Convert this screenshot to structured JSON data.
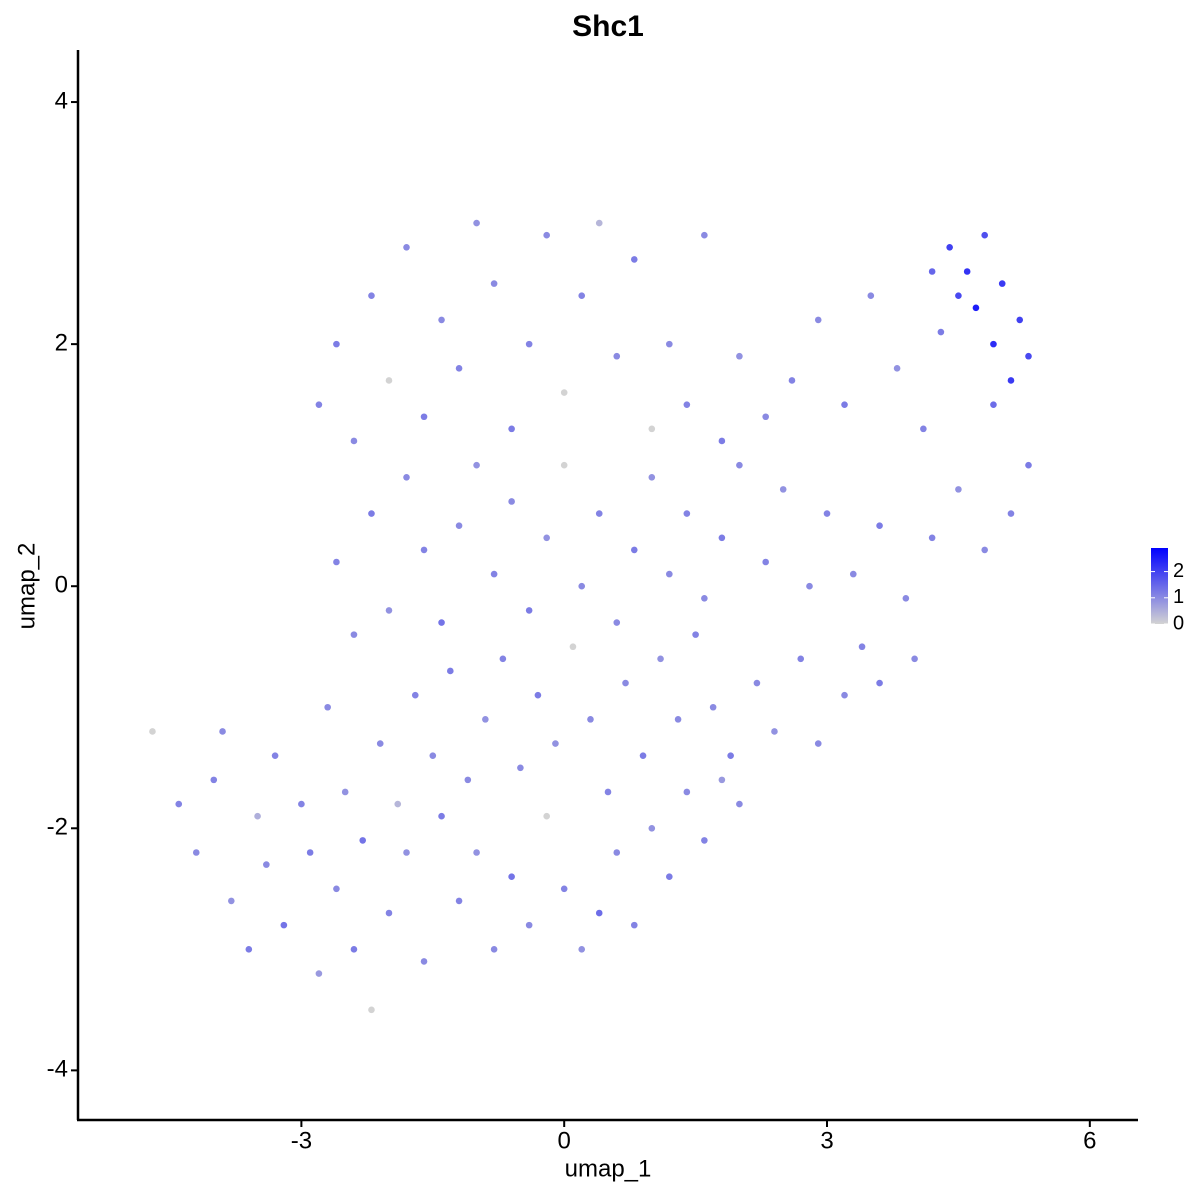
{
  "chart_data": {
    "type": "scatter",
    "title": "Shc1",
    "x_label": "umap_1",
    "y_label": "umap_2",
    "xlim": [
      -5.55,
      6.55
    ],
    "ylim": [
      -4.41,
      4.43
    ],
    "xticks": [
      -3,
      0,
      3,
      6
    ],
    "yticks": [
      -4,
      -2,
      0,
      2,
      4
    ],
    "color_low": "#d3d3d3",
    "color_high": "#0000ff",
    "color_lim": [
      0,
      2.9
    ],
    "color_ticks": [
      0,
      1,
      2
    ],
    "x": [
      -4.2,
      -4.0,
      -3.8,
      -3.6,
      -3.4,
      -3.2,
      -3.0,
      -2.8,
      -2.6,
      -2.4,
      -2.2,
      -2.0,
      -1.8,
      -1.6,
      -1.4,
      -1.2,
      -1.0,
      -0.8,
      -0.6,
      -0.4,
      -0.2,
      0.0,
      0.2,
      0.4,
      0.6,
      0.8,
      1.0,
      1.2,
      1.4,
      1.6,
      1.8,
      2.0,
      -3.9,
      -3.5,
      -3.3,
      -2.9,
      -2.7,
      -2.5,
      -2.3,
      -2.1,
      -1.9,
      -1.7,
      -1.5,
      -1.3,
      -1.1,
      -0.9,
      -0.7,
      -0.5,
      -0.3,
      -0.1,
      0.1,
      0.3,
      0.5,
      0.7,
      0.9,
      1.1,
      1.3,
      1.5,
      1.7,
      1.9,
      2.2,
      2.4,
      2.7,
      2.9,
      3.2,
      3.4,
      3.6,
      -4.7,
      -4.4,
      -2.6,
      -2.4,
      -2.2,
      -2.0,
      -1.8,
      -1.6,
      -1.4,
      -1.2,
      -1.0,
      -0.8,
      -0.6,
      -0.4,
      -0.2,
      0.0,
      0.2,
      0.4,
      0.6,
      0.8,
      1.0,
      1.2,
      1.4,
      1.6,
      1.8,
      2.0,
      2.3,
      2.5,
      2.8,
      3.0,
      3.3,
      3.6,
      3.9,
      4.2,
      4.5,
      4.8,
      5.1,
      4.0,
      -2.8,
      -2.6,
      -2.4,
      -2.2,
      -2.0,
      -1.8,
      -1.6,
      -1.4,
      -1.2,
      -1.0,
      -0.8,
      -0.6,
      -0.4,
      -0.2,
      0.0,
      0.2,
      0.4,
      0.6,
      0.8,
      1.0,
      1.2,
      1.4,
      1.6,
      1.8,
      2.0,
      2.3,
      2.6,
      2.9,
      3.2,
      3.5,
      3.8,
      4.1,
      4.3,
      4.4,
      4.6,
      4.7,
      4.8,
      4.9,
      5.0,
      5.2,
      5.3,
      4.5,
      5.1,
      4.2,
      4.9,
      5.3
    ],
    "values": [
      -2.2,
      -1.6,
      -2.6,
      -3.0,
      -2.3,
      -2.8,
      -1.8,
      -3.2,
      -2.5,
      -3.0,
      -3.5,
      -2.7,
      -2.2,
      -3.1,
      -1.9,
      -2.6,
      -2.2,
      -3.0,
      -2.4,
      -2.8,
      -1.9,
      -2.5,
      -3.0,
      -2.7,
      -2.2,
      -2.8,
      -2.0,
      -2.4,
      -1.7,
      -2.1,
      -1.6,
      -1.8,
      -1.2,
      -1.9,
      -1.4,
      -2.2,
      -1.0,
      -1.7,
      -2.1,
      -1.3,
      -1.8,
      -0.9,
      -1.4,
      -0.7,
      -1.6,
      -1.1,
      -0.6,
      -1.5,
      -0.9,
      -1.3,
      -0.5,
      -1.1,
      -1.7,
      -0.8,
      -1.4,
      -0.6,
      -1.1,
      -0.4,
      -1.0,
      -1.4,
      -0.8,
      -1.2,
      -0.6,
      -1.3,
      -0.9,
      -0.5,
      -0.8,
      -1.2,
      -1.8,
      0.2,
      -0.4,
      0.6,
      -0.2,
      0.9,
      0.3,
      -0.3,
      0.5,
      1.0,
      0.1,
      0.7,
      -0.2,
      0.4,
      1.0,
      0.0,
      0.6,
      -0.3,
      0.3,
      0.9,
      0.1,
      0.6,
      -0.1,
      0.4,
      1.0,
      0.2,
      0.8,
      0.0,
      0.6,
      0.1,
      0.5,
      -0.1,
      0.4,
      0.8,
      0.3,
      0.6,
      -0.6,
      1.5,
      2.0,
      1.2,
      2.4,
      1.7,
      2.8,
      1.4,
      2.2,
      1.8,
      3.0,
      2.5,
      1.3,
      2.0,
      2.9,
      1.6,
      2.4,
      3.0,
      1.9,
      2.7,
      1.3,
      2.0,
      1.5,
      2.9,
      1.2,
      1.9,
      1.4,
      1.7,
      2.2,
      1.5,
      2.4,
      1.8,
      1.3,
      2.1,
      2.8,
      2.6,
      2.3,
      2.9,
      2.0,
      2.5,
      2.2,
      1.9,
      2.4,
      1.7,
      2.6,
      1.5,
      1.0
    ],
    "expression": [
      1.0,
      1.1,
      0.9,
      1.2,
      1.0,
      1.3,
      1.1,
      0.8,
      1.0,
      1.2,
      0,
      1.1,
      0.9,
      1.0,
      1.2,
      1.1,
      0.9,
      1.0,
      1.3,
      1.0,
      0,
      1.1,
      0.9,
      1.4,
      1.0,
      1.1,
      0.9,
      1.2,
      1.0,
      1.1,
      0.8,
      1.0,
      1.0,
      0.5,
      1.1,
      1.2,
      1.0,
      0.9,
      1.3,
      1.0,
      0.4,
      1.1,
      1.0,
      1.2,
      1.0,
      0.9,
      1.1,
      1.0,
      1.2,
      0.9,
      0,
      1.0,
      1.1,
      1.0,
      1.2,
      0.9,
      1.0,
      1.1,
      1.0,
      1.2,
      1.0,
      0.9,
      1.1,
      1.0,
      1.0,
      1.1,
      1.2,
      0,
      1.1,
      1.1,
      1.0,
      1.2,
      0.9,
      1.0,
      1.1,
      1.3,
      1.0,
      0.9,
      1.1,
      1.0,
      1.2,
      0.9,
      0,
      1.0,
      1.1,
      1.0,
      1.2,
      0.9,
      1.0,
      1.1,
      1.0,
      1.2,
      1.0,
      1.1,
      0.9,
      1.0,
      1.1,
      1.0,
      1.2,
      1.0,
      1.1,
      0.9,
      1.0,
      1.1,
      1.0,
      1.1,
      1.2,
      1.0,
      1.1,
      0,
      1.0,
      1.2,
      1.0,
      1.1,
      0.9,
      1.0,
      1.2,
      1.1,
      1.0,
      0,
      1.1,
      0.4,
      1.0,
      1.2,
      0,
      1.0,
      1.1,
      1.0,
      1.2,
      0.9,
      1.0,
      1.1,
      1.0,
      1.2,
      1.0,
      0.9,
      1.1,
      1.2,
      2.0,
      2.2,
      2.5,
      1.8,
      2.3,
      2.1,
      2.0,
      1.9,
      1.9,
      2.1,
      1.5,
      1.4,
      1.2
    ]
  }
}
